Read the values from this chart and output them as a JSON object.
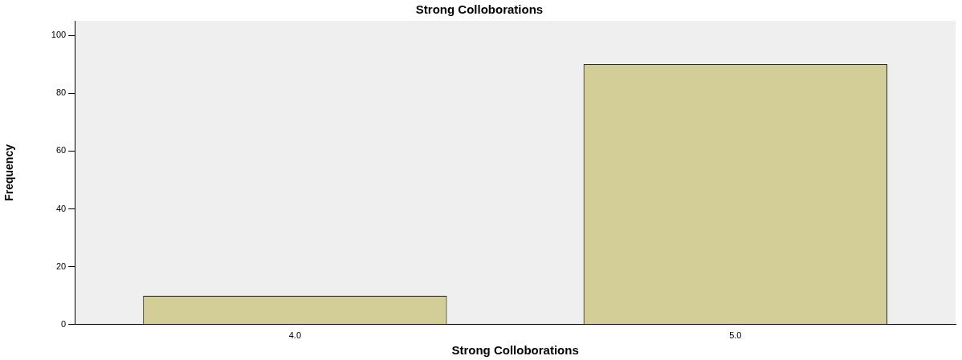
{
  "chart_data": {
    "type": "bar",
    "title": "Strong Colloborations",
    "xlabel": "Strong Colloborations",
    "ylabel": "Frequency",
    "categories": [
      "4.0",
      "5.0"
    ],
    "values": [
      10,
      90
    ],
    "color": "#d3ce97",
    "ylim": [
      0,
      105
    ],
    "yticks": [
      0,
      20,
      40,
      60,
      80,
      100
    ],
    "grid": false,
    "legend": false
  }
}
